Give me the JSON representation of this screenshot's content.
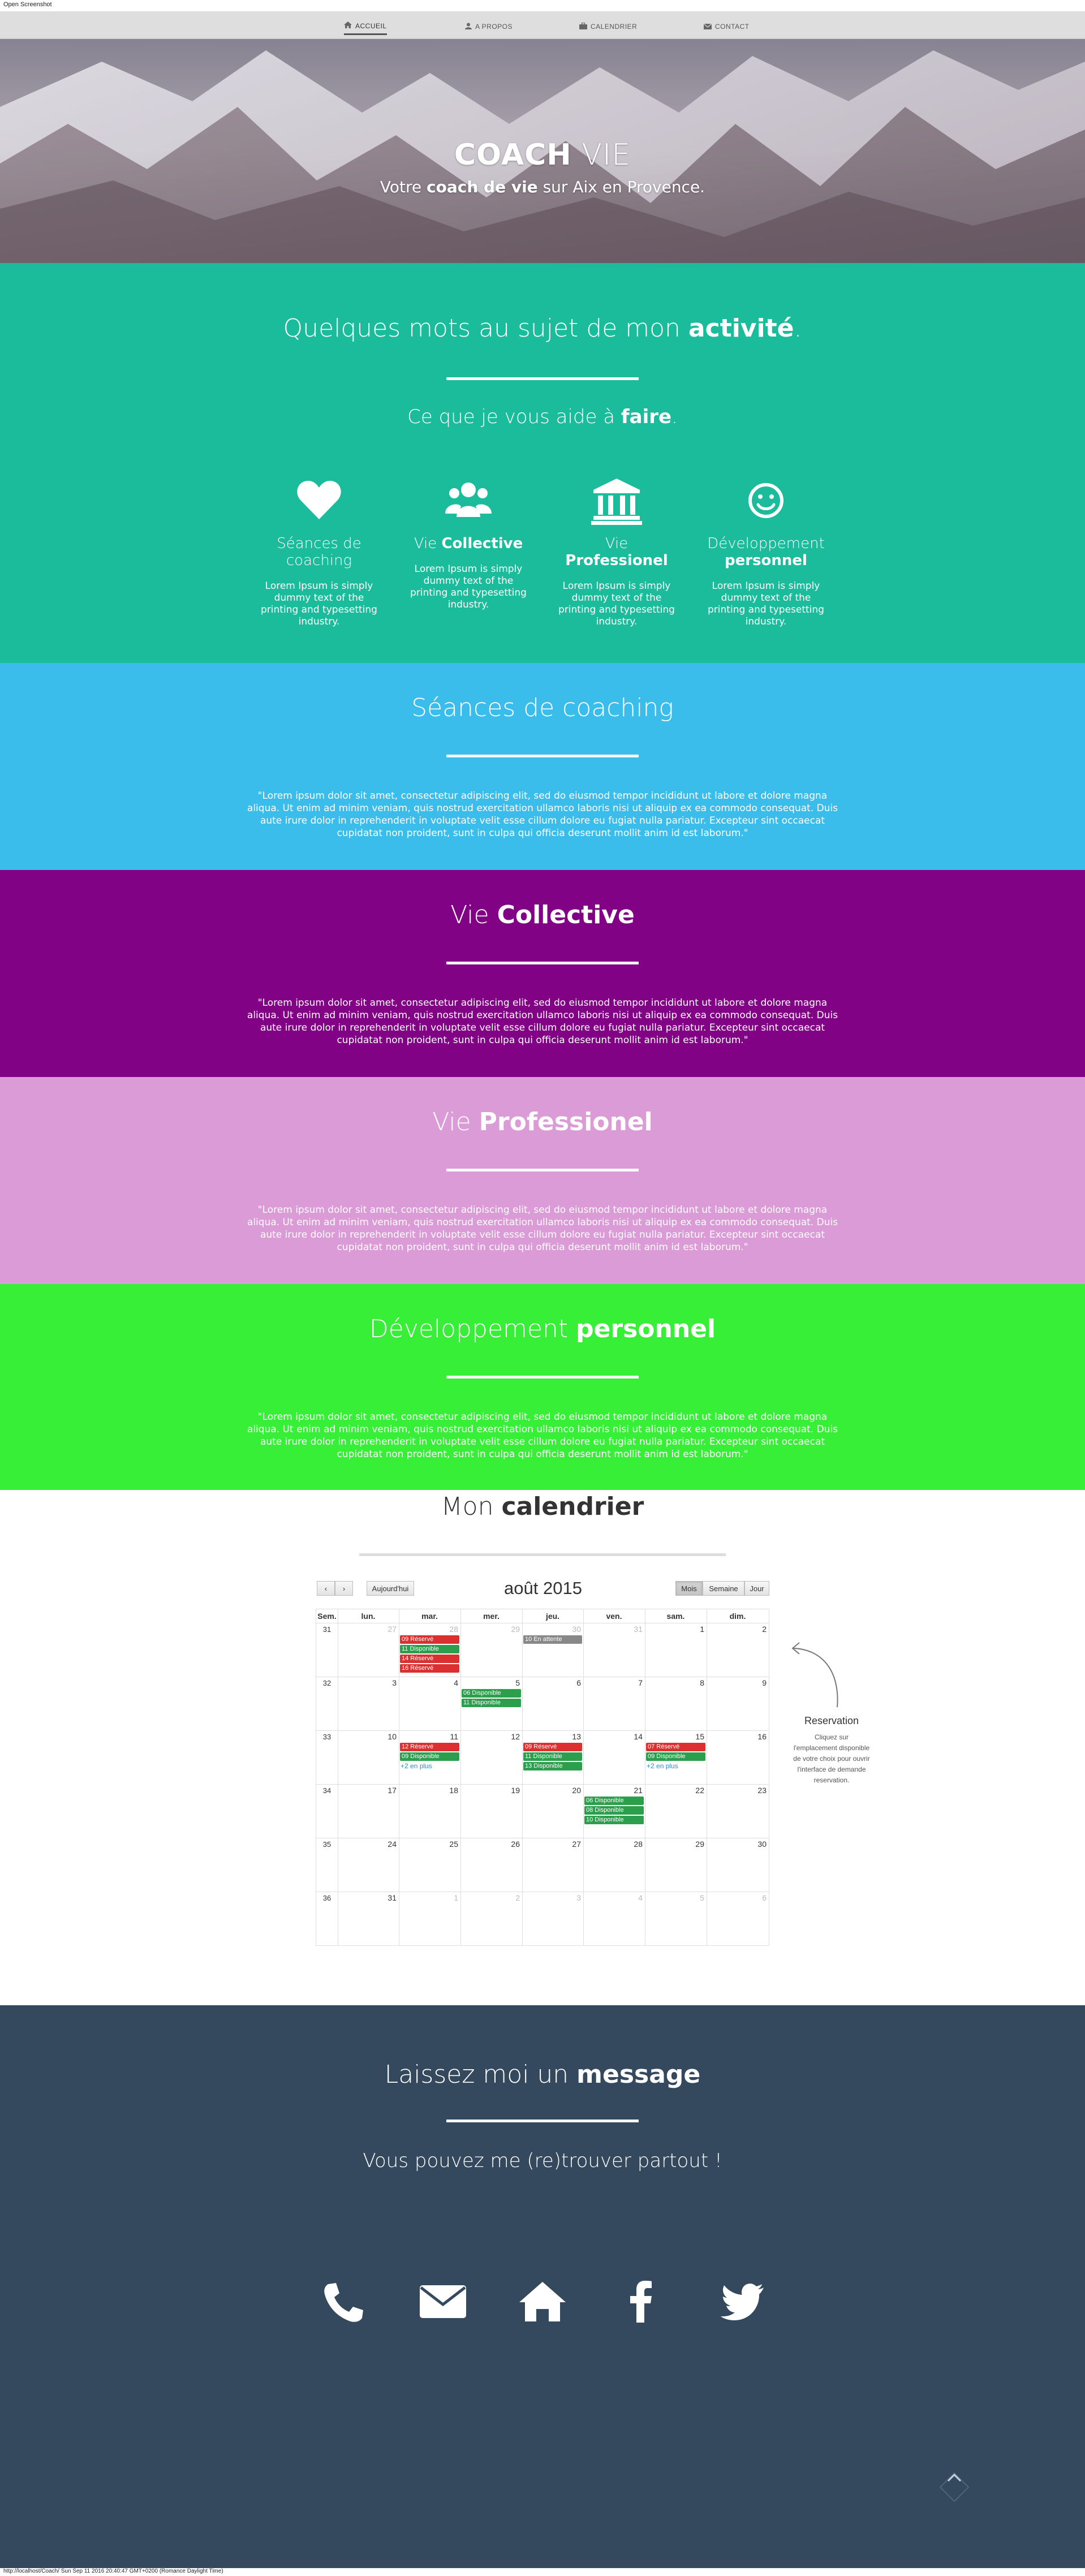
{
  "captions": {
    "top": "Open Screenshot",
    "bottom": "http://localhost/Coach/ Sun Sep 11 2016 20:40:47 GMT+0200 (Romance Daylight Time)"
  },
  "nav": {
    "items": [
      {
        "label": "ACCUEIL",
        "icon": "home-icon"
      },
      {
        "label": "A PROPOS",
        "icon": "user-icon"
      },
      {
        "label": "CALENDRIER",
        "icon": "briefcase-icon"
      },
      {
        "label": "CONTACT",
        "icon": "envelope-icon"
      }
    ]
  },
  "hero": {
    "title_bold": "COACH",
    "title_light": "VIE",
    "subtitle_pre": "Votre ",
    "subtitle_bold": "coach de vie",
    "subtitle_post": " sur Aix en Provence."
  },
  "activity": {
    "title_pre": "Quelques mots au sujet de mon ",
    "title_bold": "activité",
    "title_post": ".",
    "subtitle_pre": "Ce que je vous aide à ",
    "subtitle_bold": "faire",
    "subtitle_post": ".",
    "features": [
      {
        "name_light": "Séances de coaching",
        "name_bold": "",
        "desc": "Lorem Ipsum is simply dummy text of the printing and typesetting industry.",
        "icon": "heart-icon"
      },
      {
        "name_light": "Vie ",
        "name_bold": "Collective",
        "desc": "Lorem Ipsum is simply dummy text of the printing and typesetting industry.",
        "icon": "users-icon"
      },
      {
        "name_light": "Vie ",
        "name_bold": "Professionel",
        "desc": "Lorem Ipsum is simply dummy text of the printing and typesetting industry.",
        "icon": "bank-icon"
      },
      {
        "name_light": "Développement ",
        "name_bold": "personnel",
        "desc": "Lorem Ipsum is simply dummy text of the printing and typesetting industry.",
        "icon": "smile-icon"
      }
    ]
  },
  "lorem": "\"Lorem ipsum dolor sit amet, consectetur adipiscing elit, sed do eiusmod tempor incididunt ut labore et dolore magna aliqua. Ut enim ad minim veniam, quis nostrud exercitation ullamco laboris nisi ut aliquip ex ea commodo consequat. Duis aute irure dolor in reprehenderit in voluptate velit esse cillum dolore eu fugiat nulla pariatur. Excepteur sint occaecat cupidatat non proident, sunt in culpa qui officia deserunt mollit anim id est laborum.\"",
  "sections": {
    "seances": {
      "title_light": "Séances de coaching",
      "title_bold": "",
      "color": "#3bbdec"
    },
    "collective": {
      "title_light": "Vie ",
      "title_bold": "Collective",
      "color": "#820285"
    },
    "professionel": {
      "title_light": "Vie ",
      "title_bold": "Professionel",
      "color": "#da9bd6"
    },
    "developpement": {
      "title_light": "Développement ",
      "title_bold": "personnel",
      "color": "#37ef37"
    }
  },
  "calendar": {
    "title_light": "Mon ",
    "title_bold": "calendrier",
    "month": "août 2015",
    "today_label": "Aujourd'hui",
    "prev_label": "‹",
    "next_label": "›",
    "views": [
      "Mois",
      "Semaine",
      "Jour"
    ],
    "active_view": "Mois",
    "headers": [
      "Sem.",
      "lun.",
      "mar.",
      "mer.",
      "jeu.",
      "ven.",
      "sam.",
      "dim."
    ],
    "weeks": [
      {
        "num": "31",
        "days": [
          "27",
          "28",
          "29",
          "30",
          "31",
          "1",
          "2"
        ],
        "other": [
          true,
          true,
          true,
          true,
          true,
          false,
          false
        ]
      },
      {
        "num": "32",
        "days": [
          "3",
          "4",
          "5",
          "6",
          "7",
          "8",
          "9"
        ],
        "other": [
          false,
          false,
          false,
          false,
          false,
          false,
          false
        ]
      },
      {
        "num": "33",
        "days": [
          "10",
          "11",
          "12",
          "13",
          "14",
          "15",
          "16"
        ],
        "other": [
          false,
          false,
          false,
          false,
          false,
          false,
          false
        ]
      },
      {
        "num": "34",
        "days": [
          "17",
          "18",
          "19",
          "20",
          "21",
          "22",
          "23"
        ],
        "other": [
          false,
          false,
          false,
          false,
          false,
          false,
          false
        ]
      },
      {
        "num": "35",
        "days": [
          "24",
          "25",
          "26",
          "27",
          "28",
          "29",
          "30"
        ],
        "other": [
          false,
          false,
          false,
          false,
          false,
          false,
          false
        ]
      },
      {
        "num": "36",
        "days": [
          "31",
          "1",
          "2",
          "3",
          "4",
          "5",
          "6"
        ],
        "other": [
          false,
          true,
          true,
          true,
          true,
          true,
          true
        ]
      }
    ],
    "events": [
      {
        "week": 0,
        "day": 1,
        "slot": 0,
        "text": "09 Réservé",
        "kind": "red"
      },
      {
        "week": 0,
        "day": 1,
        "slot": 1,
        "text": "11 Disponible",
        "kind": "green"
      },
      {
        "week": 0,
        "day": 1,
        "slot": 2,
        "text": "14 Réservé",
        "kind": "red"
      },
      {
        "week": 0,
        "day": 1,
        "slot": 3,
        "text": "16 Réservé",
        "kind": "red"
      },
      {
        "week": 0,
        "day": 3,
        "slot": 0,
        "text": "10 En attente",
        "kind": "gray"
      },
      {
        "week": 1,
        "day": 2,
        "slot": 0,
        "text": "06 Disponible",
        "kind": "green"
      },
      {
        "week": 1,
        "day": 2,
        "slot": 1,
        "text": "11 Disponible",
        "kind": "green"
      },
      {
        "week": 2,
        "day": 1,
        "slot": 0,
        "text": "12 Réservé",
        "kind": "red"
      },
      {
        "week": 2,
        "day": 1,
        "slot": 1,
        "text": "09 Disponible",
        "kind": "green"
      },
      {
        "week": 2,
        "day": 3,
        "slot": 0,
        "text": "09 Réservé",
        "kind": "red"
      },
      {
        "week": 2,
        "day": 3,
        "slot": 1,
        "text": "11 Disponible",
        "kind": "green"
      },
      {
        "week": 2,
        "day": 3,
        "slot": 2,
        "text": "13 Disponible",
        "kind": "green"
      },
      {
        "week": 2,
        "day": 5,
        "slot": 0,
        "text": "07 Réservé",
        "kind": "red"
      },
      {
        "week": 2,
        "day": 5,
        "slot": 1,
        "text": "09 Disponible",
        "kind": "green"
      },
      {
        "week": 3,
        "day": 4,
        "slot": 0,
        "text": "06 Disponible",
        "kind": "green"
      },
      {
        "week": 3,
        "day": 4,
        "slot": 1,
        "text": "08 Disponible",
        "kind": "green"
      },
      {
        "week": 3,
        "day": 4,
        "slot": 2,
        "text": "10 Disponible",
        "kind": "green"
      }
    ],
    "more": [
      {
        "week": 2,
        "day": 1,
        "text": "+2 en plus"
      },
      {
        "week": 2,
        "day": 5,
        "text": "+2 en plus"
      }
    ],
    "reservation_title": "Reservation",
    "reservation_text": "Cliquez sur l'emplacement disponible de votre choix pour ouvrir l'interface de demande reservation."
  },
  "contact": {
    "title_pre": "Laissez moi un ",
    "title_bold": "message",
    "subtitle": "Vous pouvez me (re)trouver partout !",
    "icons": [
      "phone-icon",
      "envelope-icon",
      "home-icon",
      "facebook-icon",
      "twitter-icon"
    ]
  },
  "colors": {
    "teal": "#1abc9c",
    "blue": "#3bbdec",
    "purple": "#820285",
    "pink": "#da9bd6",
    "green": "#37ef37",
    "navy": "#34495e",
    "reserved": "#dc2f2f",
    "available": "#2b9f4c",
    "pending": "#888888"
  }
}
